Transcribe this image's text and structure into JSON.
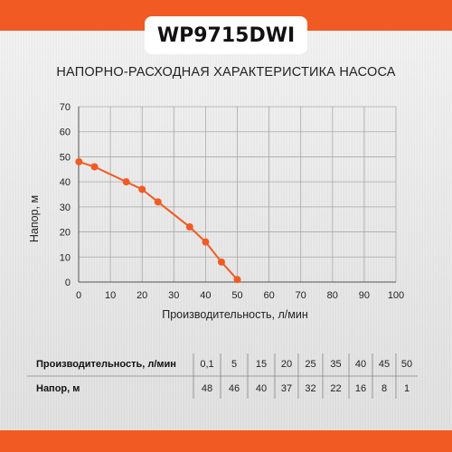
{
  "header": {
    "model": "WP9715DWI"
  },
  "colors": {
    "accent": "#f15a22"
  },
  "table": {
    "row1_label": "Производительность, л/мин",
    "row2_label": "Напор, м",
    "flow": [
      "0,1",
      "5",
      "15",
      "20",
      "25",
      "35",
      "40",
      "45",
      "50"
    ],
    "head": [
      "48",
      "46",
      "40",
      "37",
      "32",
      "22",
      "16",
      "8",
      "1"
    ]
  },
  "chart_data": {
    "type": "line",
    "title": "НАПОРНО-РАСХОДНАЯ ХАРАКТЕРИСТИКА НАСОСА",
    "xlabel": "Производительность, л/мин",
    "ylabel": "Напор, м",
    "xlim": [
      0,
      100
    ],
    "ylim": [
      0,
      70
    ],
    "xticks": [
      0,
      10,
      20,
      30,
      40,
      50,
      60,
      70,
      80,
      90,
      100
    ],
    "yticks": [
      0,
      10,
      20,
      30,
      40,
      50,
      60,
      70
    ],
    "grid": true,
    "series": [
      {
        "x": [
          0.1,
          5,
          15,
          20,
          25,
          35,
          40,
          45,
          50
        ],
        "y": [
          48,
          46,
          40,
          37,
          32,
          22,
          16,
          8,
          1
        ],
        "color": "#f15a22"
      }
    ]
  }
}
